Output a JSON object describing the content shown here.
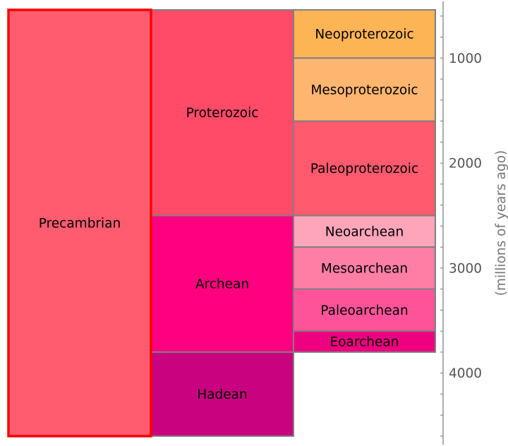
{
  "chart_data": {
    "type": "icicle",
    "title": "",
    "ylabel": "(millions of years ago)",
    "ylim": [
      460,
      4680
    ],
    "yticks": [
      1000,
      2000,
      3000,
      4000
    ],
    "minor_tick_step": 200,
    "grid": false,
    "levels": [
      [
        {
          "name": "Precambrian",
          "start": 541,
          "end": 4600,
          "color": "#FF5C6F",
          "border": "#FF0000",
          "selected": true
        }
      ],
      [
        {
          "name": "Proterozoic",
          "start": 541,
          "end": 2500,
          "color": "#FF4A68",
          "border": "#808080"
        },
        {
          "name": "Archean",
          "start": 2500,
          "end": 3800,
          "color": "#FF0080",
          "border": "#808080"
        },
        {
          "name": "Hadean",
          "start": 3800,
          "end": 4600,
          "color": "#C9027F",
          "border": "#808080"
        }
      ],
      [
        {
          "name": "Neoproterozoic",
          "start": 541,
          "end": 1000,
          "color": "#FDB454",
          "border": "#808080"
        },
        {
          "name": "Mesoproterozoic",
          "start": 1000,
          "end": 1600,
          "color": "#FDB570",
          "border": "#808080"
        },
        {
          "name": "Paleoproterozoic",
          "start": 1600,
          "end": 2500,
          "color": "#FF5A6E",
          "border": "#808080"
        },
        {
          "name": "Neoarchean",
          "start": 2500,
          "end": 2800,
          "color": "#FFA5BA",
          "border": "#808080"
        },
        {
          "name": "Mesoarchean",
          "start": 2800,
          "end": 3200,
          "color": "#FF7EA6",
          "border": "#808080"
        },
        {
          "name": "Paleoarchean",
          "start": 3200,
          "end": 3600,
          "color": "#FF5399",
          "border": "#808080"
        },
        {
          "name": "Eoarchean",
          "start": 3600,
          "end": 3800,
          "color": "#EE0080",
          "border": "#808080"
        }
      ]
    ]
  }
}
